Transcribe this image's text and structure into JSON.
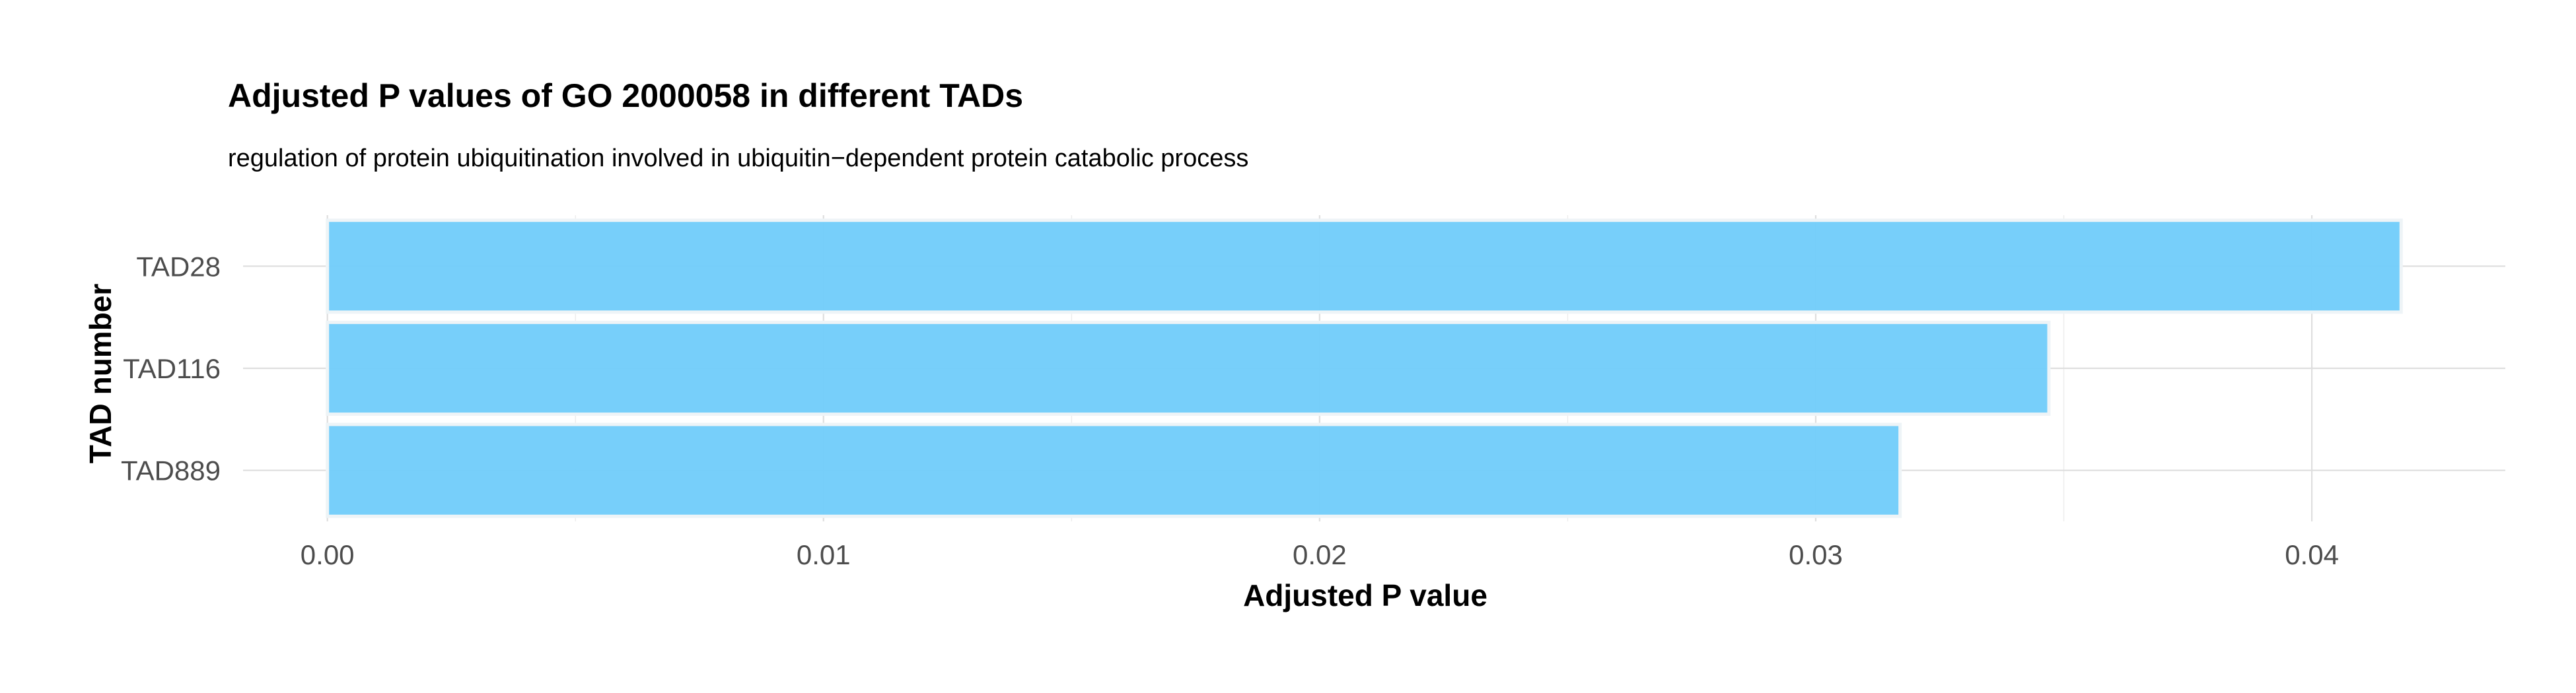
{
  "chart_data": {
    "type": "bar",
    "orientation": "horizontal",
    "title": "Adjusted P values of GO 2000058 in different TADs",
    "subtitle": "regulation of protein ubiquitination involved in ubiquitin−dependent protein catabolic process",
    "xlabel": "Adjusted P value",
    "ylabel": "TAD number",
    "categories": [
      "TAD28",
      "TAD116",
      "TAD889"
    ],
    "values": [
      0.0418,
      0.0347,
      0.0317
    ],
    "xlim": [
      -0.0017,
      0.0439
    ],
    "x_ticks": [
      0.0,
      0.01,
      0.02,
      0.03,
      0.04
    ],
    "x_tick_labels": [
      "0.00",
      "0.01",
      "0.02",
      "0.03",
      "0.04"
    ],
    "grid": true,
    "legend": "none",
    "bar_color": "#73CDFA",
    "bar_outline_color": "#EEF4F7"
  }
}
